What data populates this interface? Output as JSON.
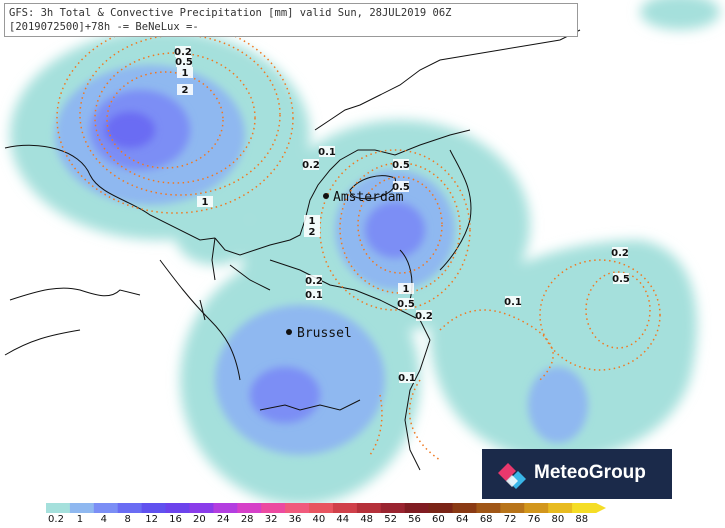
{
  "header": {
    "line1": "GFS: 3h Total & Convective Precipitation [mm] valid Sun, 28JUL2019 06Z",
    "line2": "[2019072500]+78h -= BeNeLux =-"
  },
  "cities": [
    {
      "name": "Amsterdam"
    },
    {
      "name": "Brussel"
    }
  ],
  "contour_labels": [
    "0.2",
    "0.5",
    "1",
    "2",
    "0.1",
    "0.2",
    "1",
    "0.5",
    "0.5",
    "1",
    "2",
    "0.2",
    "0.1",
    "1",
    "0.5",
    "0.2",
    "0.1",
    "0.2",
    "0.5",
    "0.1"
  ],
  "logo": {
    "text": "MeteoGroup"
  },
  "colorbar": {
    "labels": [
      "0.2",
      "1",
      "4",
      "8",
      "12",
      "16",
      "20",
      "24",
      "28",
      "32",
      "36",
      "40",
      "44",
      "48",
      "52",
      "56",
      "60",
      "64",
      "68",
      "72",
      "76",
      "80",
      "88"
    ],
    "colors": [
      "#a5e0dc",
      "#8fb8f0",
      "#7b8ef5",
      "#6a6cf3",
      "#6051ef",
      "#6c43ec",
      "#8a3cea",
      "#b33ee0",
      "#d640c8",
      "#ec4aa0",
      "#f05a7c",
      "#e85560",
      "#d0404a",
      "#b5303a",
      "#9a2430",
      "#801c22",
      "#7a2416",
      "#8a3a14",
      "#a05616",
      "#b8741a",
      "#d2961c",
      "#e8bb20",
      "#f5dd26"
    ]
  },
  "colors": {
    "light_precip": "#a5e0dc",
    "medium_precip": "#8fb8f0",
    "heavy_precip": "#7b8ef5",
    "contour": "#f07820",
    "coastline": "#111111"
  }
}
